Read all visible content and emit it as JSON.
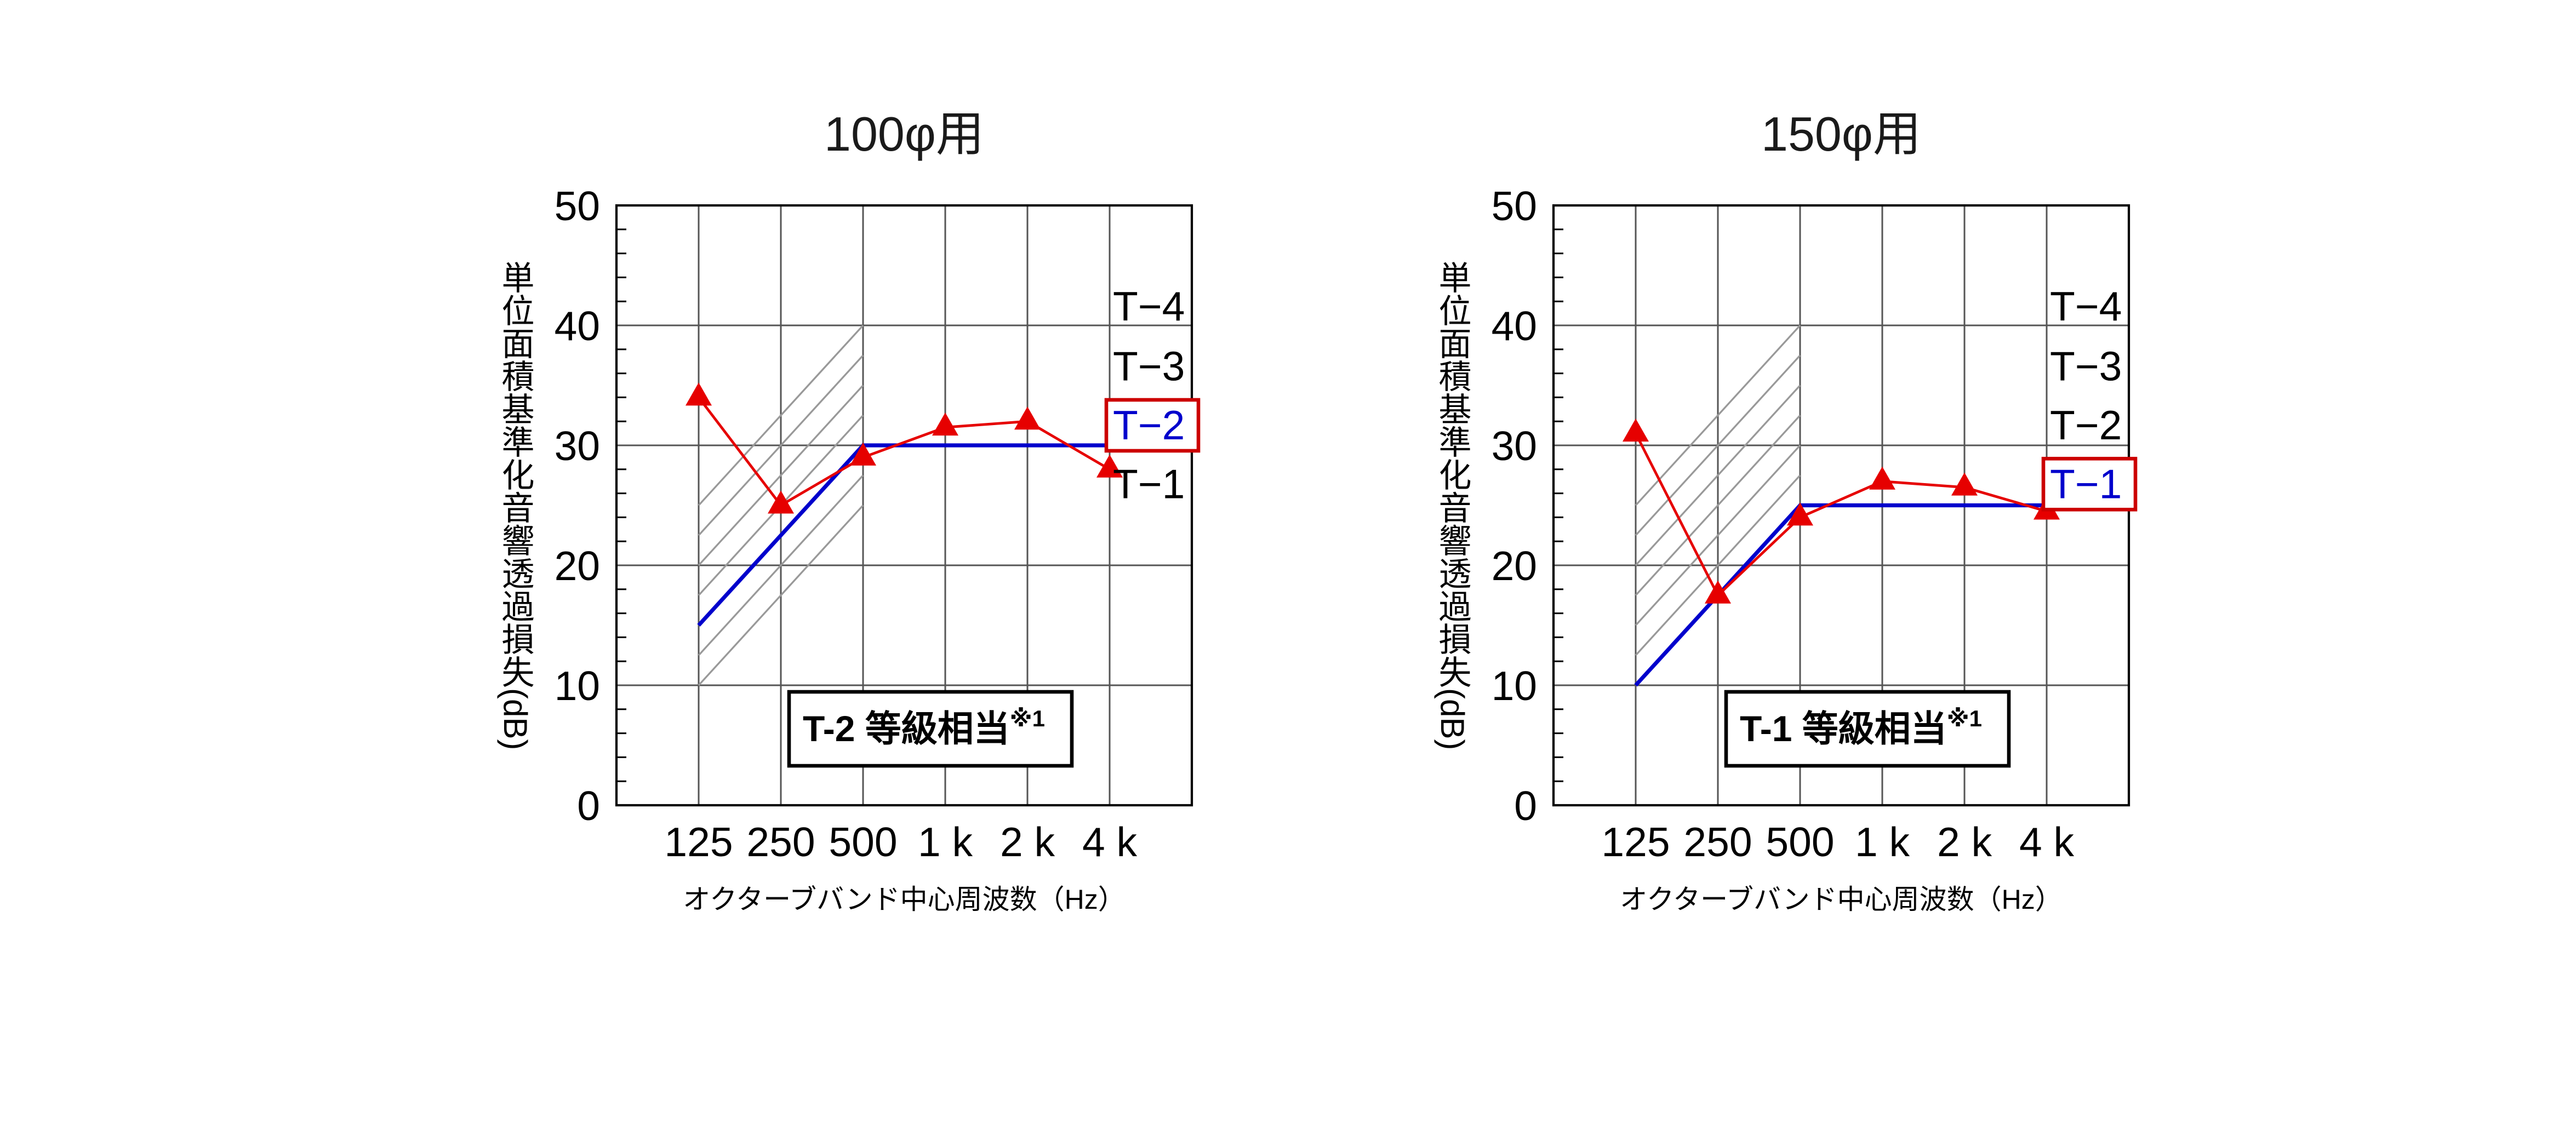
{
  "page": {
    "background": "#ffffff"
  },
  "chart_data": [
    {
      "type": "line",
      "title": "100φ用",
      "ylabel": "単位面積基準化音響透過損失(dB)",
      "xlabel": "オクターブバンド中心周波数（Hz）",
      "categories": [
        "125",
        "250",
        "500",
        "1 k",
        "2 k",
        "4 k"
      ],
      "ylim": [
        0,
        50
      ],
      "yticks": [
        0,
        10,
        20,
        30,
        40,
        50
      ],
      "minor_tick_step": 2,
      "series": [
        {
          "name": "grade-line-t2",
          "type": "line",
          "color": "#0000cc",
          "values": [
            15,
            22.5,
            30,
            30,
            30,
            30
          ]
        },
        {
          "name": "measured",
          "type": "line-triangle",
          "color": "#e60000",
          "values": [
            34,
            25,
            29,
            31.5,
            32,
            28
          ]
        }
      ],
      "hatch_band": {
        "x_start": "125",
        "x_end": "500",
        "start_values": [
          10,
          12.5,
          15,
          17.5,
          20,
          22.5,
          25
        ],
        "rise": 15,
        "color": "#999999"
      },
      "grade_labels": [
        {
          "label": "T−4",
          "value": 41.5,
          "highlighted": false
        },
        {
          "label": "T−3",
          "value": 36.5,
          "highlighted": false
        },
        {
          "label": "T−2",
          "value": 31.6,
          "highlighted": true
        },
        {
          "label": "T−1",
          "value": 26.7,
          "highlighted": false
        }
      ],
      "highlight_color": "#cc0000",
      "highlight_text_color": "#0000cc",
      "annotation": {
        "text": "T-2 等級相当",
        "sup": "※1"
      }
    },
    {
      "type": "line",
      "title": "150φ用",
      "ylabel": "単位面積基準化音響透過損失(dB)",
      "xlabel": "オクターブバンド中心周波数（Hz）",
      "categories": [
        "125",
        "250",
        "500",
        "1 k",
        "2 k",
        "4 k"
      ],
      "ylim": [
        0,
        50
      ],
      "yticks": [
        0,
        10,
        20,
        30,
        40,
        50
      ],
      "minor_tick_step": 2,
      "series": [
        {
          "name": "grade-line-t1",
          "type": "line",
          "color": "#0000cc",
          "values": [
            10,
            17.5,
            25,
            25,
            25,
            25
          ]
        },
        {
          "name": "measured",
          "type": "line-triangle",
          "color": "#e60000",
          "values": [
            31,
            17.5,
            24,
            27,
            26.5,
            24.5
          ]
        }
      ],
      "hatch_band": {
        "x_start": "125",
        "x_end": "500",
        "start_values": [
          10,
          12.5,
          15,
          17.5,
          20,
          22.5,
          25
        ],
        "rise": 15,
        "color": "#999999"
      },
      "grade_labels": [
        {
          "label": "T−4",
          "value": 41.5,
          "highlighted": false
        },
        {
          "label": "T−3",
          "value": 36.5,
          "highlighted": false
        },
        {
          "label": "T−2",
          "value": 31.6,
          "highlighted": false
        },
        {
          "label": "T−1",
          "value": 26.7,
          "highlighted": true
        }
      ],
      "highlight_color": "#cc0000",
      "highlight_text_color": "#0000cc",
      "annotation": {
        "text": "T-1 等級相当",
        "sup": "※1"
      }
    }
  ]
}
